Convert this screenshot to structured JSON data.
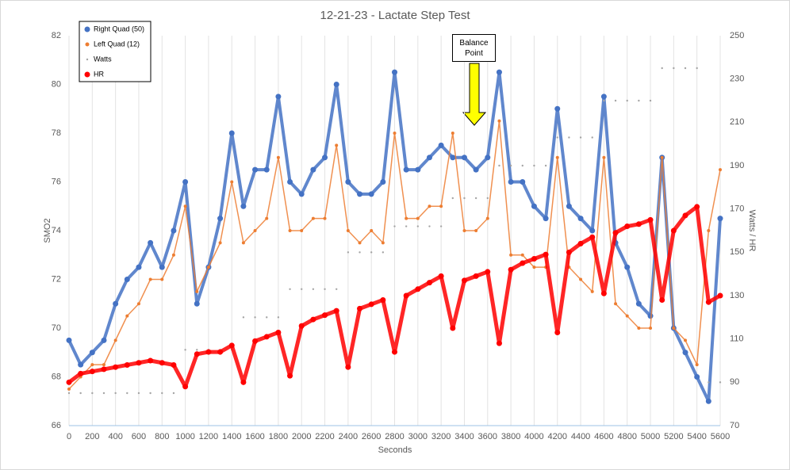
{
  "chart_data": {
    "type": "scatter",
    "title": "12-21-23 - Lactate Step Test",
    "xlabel": "Seconds",
    "ylabel": "SMO2",
    "y2label": "Watts / HR",
    "annotation": "Balance Point",
    "xlim": [
      0,
      5600
    ],
    "xticks": [
      0,
      200,
      400,
      600,
      800,
      1000,
      1200,
      1400,
      1600,
      1800,
      2000,
      2200,
      2400,
      2600,
      2800,
      3000,
      3200,
      3400,
      3600,
      3800,
      4000,
      4200,
      4400,
      4600,
      4800,
      5000,
      5200,
      5400,
      5600
    ],
    "ylim": [
      66,
      82
    ],
    "yticks": [
      66,
      68,
      70,
      72,
      74,
      76,
      78,
      80,
      82
    ],
    "y2lim": [
      70,
      250
    ],
    "y2ticks": [
      70,
      90,
      110,
      130,
      150,
      170,
      190,
      210,
      230,
      250
    ],
    "xgrid": true,
    "legend": "upper left",
    "x": [
      0,
      100,
      200,
      300,
      400,
      500,
      600,
      700,
      800,
      900,
      1000,
      1100,
      1200,
      1300,
      1400,
      1500,
      1600,
      1700,
      1800,
      1900,
      2000,
      2100,
      2200,
      2300,
      2400,
      2500,
      2600,
      2700,
      2800,
      2900,
      3000,
      3100,
      3200,
      3300,
      3400,
      3500,
      3600,
      3700,
      3800,
      3900,
      4000,
      4100,
      4200,
      4300,
      4400,
      4500,
      4600,
      4700,
      4800,
      4900,
      5000,
      5100,
      5200,
      5300,
      5400,
      5500,
      5600
    ],
    "series": [
      {
        "name": "Right Quad (50)",
        "color": "#4472c4",
        "values": [
          69.5,
          68.5,
          69,
          69.5,
          71,
          72,
          72.5,
          73.5,
          72.5,
          74,
          76,
          71,
          72.5,
          74.5,
          78,
          75,
          76.5,
          76.5,
          79.5,
          76,
          75.5,
          76.5,
          77,
          80,
          76,
          75.5,
          75.5,
          76,
          80.5,
          76.5,
          76.5,
          77,
          77.5,
          77,
          77,
          76.5,
          77,
          80.5,
          76,
          76,
          75,
          74.5,
          79,
          75,
          74.5,
          74,
          79.5,
          73.5,
          72.5,
          71,
          70.5,
          77,
          70,
          69,
          68,
          67,
          74.5
        ]
      },
      {
        "name": "Left Quad (12)",
        "color": "#ed7d31",
        "values": [
          67.5,
          68,
          68.5,
          68.5,
          69.5,
          70.5,
          71,
          72,
          72,
          73,
          75,
          71.5,
          72.5,
          73.5,
          76,
          73.5,
          74,
          74.5,
          77,
          74,
          74,
          74.5,
          74.5,
          77.5,
          74,
          73.5,
          74,
          73.5,
          78,
          74.5,
          74.5,
          75,
          75,
          78,
          74,
          74,
          74.5,
          78.5,
          73,
          73,
          72.5,
          72.5,
          77,
          72.5,
          72,
          71.5,
          77,
          71,
          70.5,
          70,
          70,
          77,
          70,
          69.5,
          68.5,
          74,
          76.5
        ]
      },
      {
        "name": "Watts",
        "color": "#a5a5a5",
        "axis": "y2",
        "values": [
          85,
          85,
          85,
          85,
          85,
          85,
          85,
          85,
          85,
          85,
          105,
          105,
          105,
          105,
          105,
          120,
          120,
          120,
          120,
          133,
          133,
          133,
          133,
          133,
          150,
          150,
          150,
          150,
          162,
          162,
          162,
          162,
          162,
          175,
          175,
          175,
          175,
          190,
          190,
          190,
          190,
          190,
          203,
          203,
          203,
          203,
          220,
          220,
          220,
          220,
          220,
          235,
          235,
          235,
          235,
          90,
          90
        ]
      },
      {
        "name": "HR",
        "color": "#ff0000",
        "axis": "y2",
        "values": [
          90,
          94,
          95,
          96,
          97,
          98,
          99,
          100,
          99,
          98,
          88,
          103,
          104,
          104,
          107,
          90,
          109,
          111,
          113,
          93,
          116,
          119,
          121,
          123,
          97,
          124,
          126,
          128,
          104,
          130,
          133,
          136,
          139,
          115,
          137,
          139,
          141,
          108,
          142,
          145,
          147,
          149,
          113,
          150,
          154,
          157,
          131,
          159,
          162,
          163,
          165,
          128,
          160,
          167,
          171,
          127,
          130
        ]
      }
    ]
  }
}
